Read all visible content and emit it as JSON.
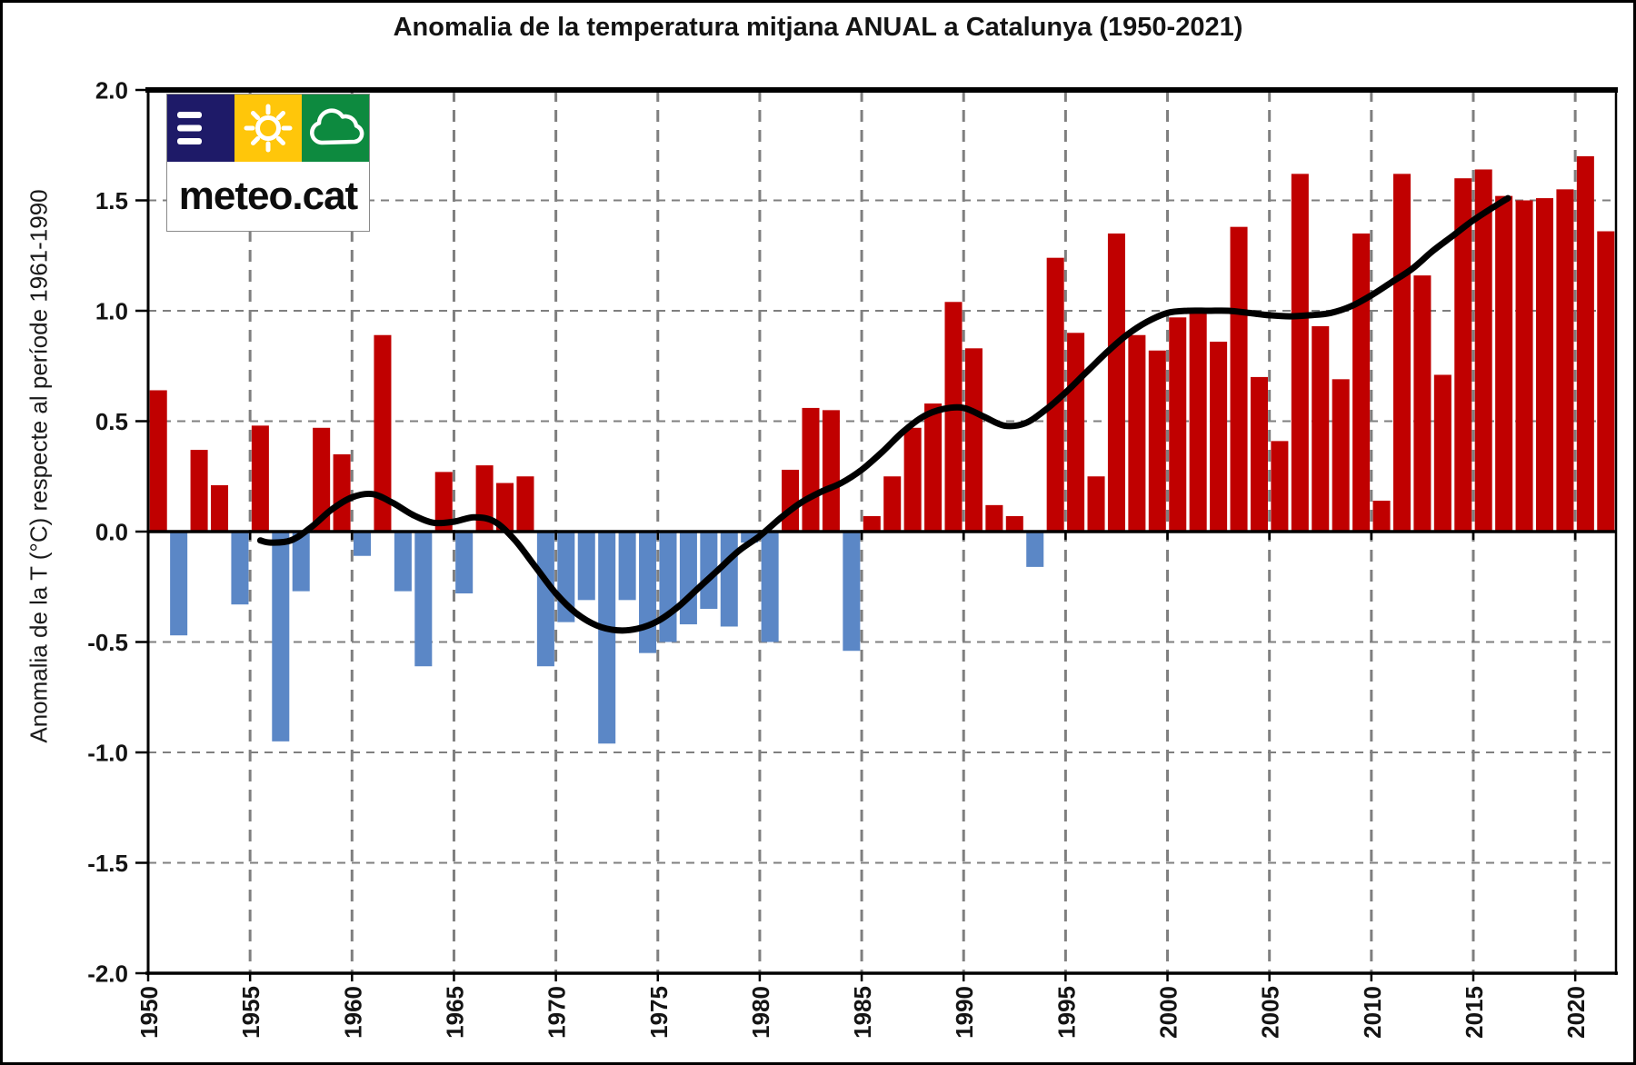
{
  "title": "Anomalia de la temperatura mitjana ANUAL a Catalunya (1950-2021)",
  "y_axis": {
    "label": "Anomalia de la T (°C) respecte al període 1961-1990",
    "ticks": [
      {
        "value": 2.0,
        "label": "2.0"
      },
      {
        "value": 1.5,
        "label": "1.5"
      },
      {
        "value": 1.0,
        "label": "1.0"
      },
      {
        "value": 0.5,
        "label": "0.5"
      },
      {
        "value": 0.0,
        "label": "0.0"
      },
      {
        "value": -0.5,
        "label": "-0.5"
      },
      {
        "value": -1.0,
        "label": "-1.0"
      },
      {
        "value": -1.5,
        "label": "-1.5"
      },
      {
        "value": -2.0,
        "label": "-2.0"
      }
    ]
  },
  "x_axis": {
    "ticks": [
      {
        "value": 1950,
        "label": "1950"
      },
      {
        "value": 1955,
        "label": "1955"
      },
      {
        "value": 1960,
        "label": "1960"
      },
      {
        "value": 1965,
        "label": "1965"
      },
      {
        "value": 1970,
        "label": "1970"
      },
      {
        "value": 1975,
        "label": "1975"
      },
      {
        "value": 1980,
        "label": "1980"
      },
      {
        "value": 1985,
        "label": "1985"
      },
      {
        "value": 1990,
        "label": "1990"
      },
      {
        "value": 1995,
        "label": "1995"
      },
      {
        "value": 2000,
        "label": "2000"
      },
      {
        "value": 2005,
        "label": "2005"
      },
      {
        "value": 2010,
        "label": "2010"
      },
      {
        "value": 2015,
        "label": "2015"
      },
      {
        "value": 2020,
        "label": "2020"
      }
    ]
  },
  "logo": {
    "text": "meteo.cat",
    "icons": [
      "menu-lines-icon",
      "sun-icon",
      "cloud-icon"
    ],
    "colors": {
      "panel_blue": "#1e1a68",
      "panel_yellow": "#ffc60a",
      "panel_green": "#0d8a3f"
    }
  },
  "colors": {
    "positive_bar": "#c00000",
    "negative_bar": "#5b87c6",
    "trend_line": "#000000",
    "grid": "#7f7f7f",
    "axis": "#000000",
    "text": "#141414"
  },
  "chart_data": {
    "type": "bar",
    "title": "Anomalia de la temperatura mitjana ANUAL a Catalunya (1950-2021)",
    "xlabel": "",
    "ylabel": "Anomalia de la T (°C) respecte al període 1961-1990",
    "ylim": [
      -2.0,
      2.0
    ],
    "xlim": [
      1950,
      2022
    ],
    "grid": true,
    "legend": false,
    "x": [
      1950,
      1951,
      1952,
      1953,
      1954,
      1955,
      1956,
      1957,
      1958,
      1959,
      1960,
      1961,
      1962,
      1963,
      1964,
      1965,
      1966,
      1967,
      1968,
      1969,
      1970,
      1971,
      1972,
      1973,
      1974,
      1975,
      1976,
      1977,
      1978,
      1979,
      1980,
      1981,
      1982,
      1983,
      1984,
      1985,
      1986,
      1987,
      1988,
      1989,
      1990,
      1991,
      1992,
      1993,
      1994,
      1995,
      1996,
      1997,
      1998,
      1999,
      2000,
      2001,
      2002,
      2003,
      2004,
      2005,
      2006,
      2007,
      2008,
      2009,
      2010,
      2011,
      2012,
      2013,
      2014,
      2015,
      2016,
      2017,
      2018,
      2019,
      2020,
      2021
    ],
    "series": [
      {
        "name": "annual-anomaly-bars",
        "type": "bar",
        "values": [
          0.64,
          -0.47,
          0.37,
          0.21,
          -0.33,
          0.48,
          -0.95,
          -0.27,
          0.47,
          0.35,
          -0.11,
          0.89,
          -0.27,
          -0.61,
          0.27,
          -0.28,
          0.3,
          0.22,
          0.25,
          -0.61,
          -0.41,
          -0.31,
          -0.96,
          -0.31,
          -0.55,
          -0.5,
          -0.42,
          -0.35,
          -0.43,
          -0.05,
          -0.5,
          0.28,
          0.56,
          0.55,
          -0.54,
          0.07,
          0.25,
          0.47,
          0.58,
          1.04,
          0.83,
          0.12,
          0.07,
          -0.16,
          1.24,
          0.9,
          0.25,
          1.35,
          0.89,
          0.82,
          0.97,
          0.99,
          0.86,
          1.38,
          0.7,
          0.41,
          1.62,
          0.93,
          0.69,
          1.35,
          0.14,
          1.62,
          1.16,
          0.71,
          1.6,
          1.64,
          1.52,
          1.5,
          1.51,
          1.55,
          1.7,
          1.36
        ]
      },
      {
        "name": "smoothed-trend-line",
        "type": "line",
        "x": [
          1955.5,
          1956,
          1957,
          1958,
          1959,
          1960,
          1961,
          1962,
          1963,
          1964,
          1965,
          1966,
          1967,
          1968,
          1969,
          1970,
          1971,
          1972,
          1973,
          1974,
          1975,
          1976,
          1977,
          1978,
          1979,
          1980,
          1981,
          1982,
          1983,
          1984,
          1985,
          1986,
          1987,
          1988,
          1989,
          1990,
          1991,
          1992,
          1993,
          1994,
          1995,
          1996,
          1997,
          1998,
          1999,
          2000,
          2001,
          2002,
          2003,
          2004,
          2005,
          2006,
          2007,
          2008,
          2009,
          2010,
          2011,
          2012,
          2013,
          2014,
          2015,
          2016,
          2016.7
        ],
        "values": [
          -0.04,
          -0.05,
          -0.04,
          0.02,
          0.1,
          0.155,
          0.17,
          0.13,
          0.075,
          0.04,
          0.045,
          0.065,
          0.045,
          -0.04,
          -0.16,
          -0.28,
          -0.37,
          -0.425,
          -0.447,
          -0.44,
          -0.405,
          -0.34,
          -0.255,
          -0.17,
          -0.085,
          -0.02,
          0.06,
          0.13,
          0.18,
          0.22,
          0.28,
          0.36,
          0.45,
          0.52,
          0.555,
          0.56,
          0.52,
          0.48,
          0.49,
          0.55,
          0.63,
          0.72,
          0.81,
          0.89,
          0.95,
          0.99,
          1.0,
          1.0,
          1.0,
          0.99,
          0.98,
          0.975,
          0.98,
          0.99,
          1.02,
          1.07,
          1.13,
          1.19,
          1.27,
          1.34,
          1.41,
          1.47,
          1.51
        ]
      }
    ]
  }
}
